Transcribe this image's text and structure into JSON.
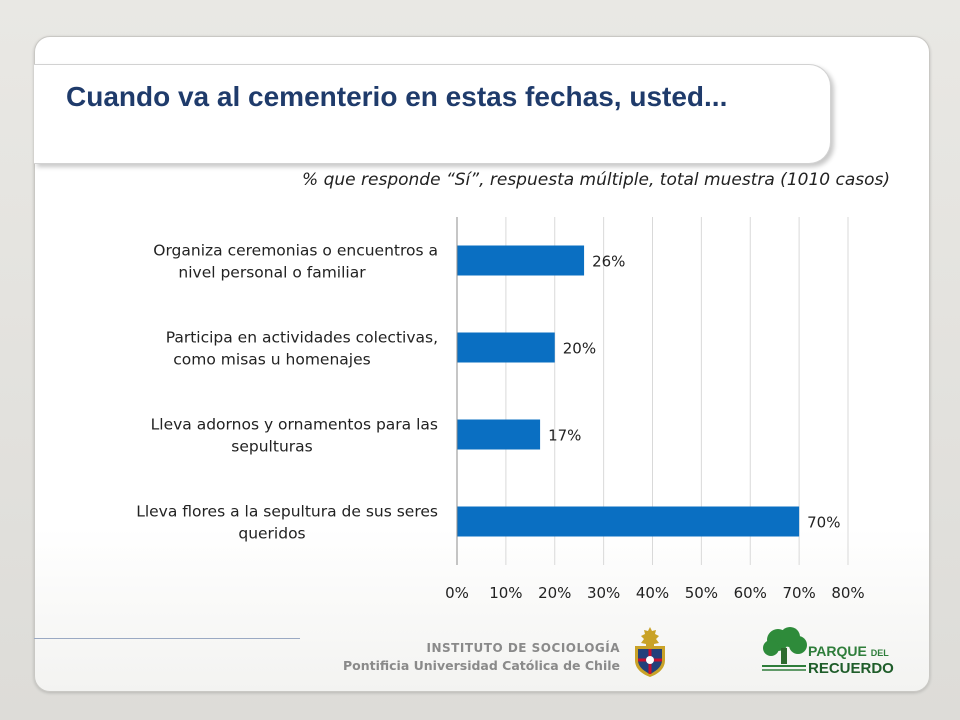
{
  "slide": {
    "title": "Cuando va al cementerio en estas fechas, usted...",
    "subtitle": "% que responde “Sí”, respuesta múltiple, total muestra (1010 casos)"
  },
  "chart_data": {
    "type": "bar",
    "orientation": "horizontal",
    "categories": [
      [
        "Organiza ceremonias o encuentros a",
        "nivel personal o familiar"
      ],
      [
        "Participa en actividades colectivas,",
        "como misas u homenajes"
      ],
      [
        "Lleva adornos y ornamentos para las",
        "sepulturas"
      ],
      [
        "Lleva flores a la sepultura de sus seres",
        "queridos"
      ]
    ],
    "values": [
      26,
      20,
      17,
      70
    ],
    "data_labels": [
      "26%",
      "20%",
      "17%",
      "70%"
    ],
    "xlim": [
      0,
      80
    ],
    "xticks": [
      0,
      10,
      20,
      30,
      40,
      50,
      60,
      70,
      80
    ],
    "xtick_labels": [
      "0%",
      "10%",
      "20%",
      "30%",
      "40%",
      "50%",
      "60%",
      "70%",
      "80%"
    ],
    "grid": "vertical",
    "bar_color": "#0a6fc2",
    "legend": "none"
  },
  "footer": {
    "institute_line1": "INSTITUTO DE SOCIOLOGÍA",
    "institute_line2": "Pontificia Universidad Católica de Chile",
    "logo_line1": "PARQUE",
    "logo_line1_small": "DEL",
    "logo_line2": "RECUERDO"
  }
}
